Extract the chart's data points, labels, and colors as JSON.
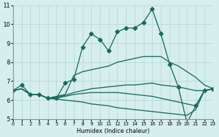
{
  "xlabel": "Humidex (Indice chaleur)",
  "ylabel": "",
  "bg_color": "#d6eeee",
  "grid_color": "#b0d4d4",
  "line_color": "#1a6b5a",
  "xlim": [
    0,
    23
  ],
  "ylim": [
    5,
    11
  ],
  "xticks": [
    0,
    1,
    2,
    3,
    4,
    5,
    6,
    7,
    8,
    9,
    10,
    11,
    12,
    13,
    14,
    15,
    16,
    17,
    18,
    19,
    20,
    21,
    22,
    23
  ],
  "yticks": [
    5,
    6,
    7,
    8,
    9,
    10,
    11
  ],
  "lines": [
    {
      "x": [
        0,
        1,
        2,
        3,
        4,
        5,
        6,
        7,
        8,
        9,
        10,
        11,
        12,
        13,
        14,
        15,
        16,
        17,
        18,
        19,
        20,
        21,
        22,
        23
      ],
      "y": [
        6.5,
        6.8,
        6.3,
        6.3,
        6.1,
        6.1,
        6.9,
        7.1,
        8.8,
        9.5,
        9.2,
        8.6,
        9.6,
        9.8,
        9.8,
        10.1,
        10.8,
        9.5,
        7.9,
        6.7,
        4.8,
        5.7,
        6.5,
        6.6
      ],
      "marker": "D",
      "markersize": 3
    },
    {
      "x": [
        0,
        1,
        2,
        3,
        4,
        5,
        6,
        7,
        8,
        9,
        10,
        11,
        12,
        13,
        14,
        15,
        16,
        17,
        18,
        19,
        20,
        21,
        22,
        23
      ],
      "y": [
        6.5,
        6.6,
        6.3,
        6.3,
        6.1,
        6.2,
        6.3,
        7.3,
        7.5,
        7.6,
        7.7,
        7.8,
        8.0,
        8.1,
        8.2,
        8.3,
        8.3,
        8.3,
        8.0,
        7.8,
        7.5,
        7.2,
        6.8,
        6.6
      ],
      "marker": null,
      "markersize": 0
    },
    {
      "x": [
        0,
        1,
        2,
        3,
        4,
        5,
        6,
        7,
        8,
        9,
        10,
        11,
        12,
        13,
        14,
        15,
        16,
        17,
        18,
        19,
        20,
        21,
        22,
        23
      ],
      "y": [
        6.5,
        6.6,
        6.3,
        6.3,
        6.1,
        6.15,
        6.25,
        6.4,
        6.5,
        6.6,
        6.65,
        6.7,
        6.75,
        6.8,
        6.8,
        6.85,
        6.9,
        6.8,
        6.75,
        6.7,
        6.6,
        6.5,
        6.5,
        6.6
      ],
      "marker": null,
      "markersize": 0
    },
    {
      "x": [
        0,
        1,
        2,
        3,
        4,
        5,
        6,
        7,
        8,
        9,
        10,
        11,
        12,
        13,
        14,
        15,
        16,
        17,
        18,
        19,
        20,
        21,
        22,
        23
      ],
      "y": [
        6.5,
        6.6,
        6.3,
        6.3,
        6.1,
        6.1,
        6.2,
        6.3,
        6.35,
        6.4,
        6.4,
        6.4,
        6.4,
        6.35,
        6.3,
        6.25,
        6.2,
        6.1,
        6.0,
        5.9,
        5.8,
        5.7,
        6.5,
        6.6
      ],
      "marker": null,
      "markersize": 0
    },
    {
      "x": [
        0,
        1,
        2,
        3,
        4,
        5,
        6,
        7,
        8,
        9,
        10,
        11,
        12,
        13,
        14,
        15,
        16,
        17,
        18,
        19,
        20,
        21,
        22,
        23
      ],
      "y": [
        6.5,
        6.6,
        6.3,
        6.3,
        6.1,
        6.05,
        6.0,
        5.95,
        5.9,
        5.8,
        5.75,
        5.7,
        5.6,
        5.55,
        5.5,
        5.45,
        5.4,
        5.35,
        5.3,
        5.25,
        5.2,
        5.5,
        6.5,
        6.6
      ],
      "marker": null,
      "markersize": 0
    }
  ]
}
